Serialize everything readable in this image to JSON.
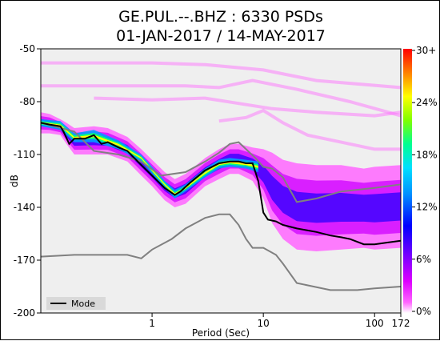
{
  "chart_data": {
    "type": "heatmap",
    "title": "GE.PUL.--.BHZ : 6330 PSDs",
    "subtitle": "01-JAN-2017 / 14-MAY-2017",
    "xlabel": "Period (Sec)",
    "ylabel": "dB",
    "x_scale": "log",
    "xlim": [
      0.1,
      172
    ],
    "ylim": [
      -200,
      -50
    ],
    "x_ticks": [
      {
        "value": 1,
        "label": "1"
      },
      {
        "value": 10,
        "label": "10"
      },
      {
        "value": 100,
        "label": "100"
      },
      {
        "value": 172,
        "label": "172"
      }
    ],
    "y_ticks": [
      {
        "value": -50,
        "label": "-50"
      },
      {
        "value": -80,
        "label": "-80"
      },
      {
        "value": -110,
        "label": "-110"
      },
      {
        "value": -140,
        "label": "-140"
      },
      {
        "value": -170,
        "label": "-170"
      },
      {
        "value": -200,
        "label": "-200"
      }
    ],
    "colorbar": {
      "ticks": [
        {
          "value": 30,
          "label": "30+"
        },
        {
          "value": 24,
          "label": "24%"
        },
        {
          "value": 18,
          "label": "18%"
        },
        {
          "value": 12,
          "label": "12%"
        },
        {
          "value": 6,
          "label": "6%"
        },
        {
          "value": 0,
          "label": "0%"
        }
      ]
    },
    "legend": {
      "label": "Mode",
      "position": "bottom-left"
    },
    "colors": {
      "plot_background": "#efefef",
      "mode_line": "#000000",
      "noise_model_line": "#808080",
      "low_probability": "#ff66ff",
      "mid_probability": "#0000ff",
      "high_probability": "#ff0000"
    },
    "mode": {
      "x": [
        0.1,
        0.12,
        0.15,
        0.16,
        0.18,
        0.2,
        0.25,
        0.3,
        0.35,
        0.4,
        0.5,
        0.6,
        0.8,
        1.0,
        1.3,
        1.6,
        1.8,
        2.2,
        3.0,
        4.0,
        5.0,
        6.0,
        7.0,
        8.0,
        9.0,
        10.0,
        11.0,
        13.0,
        15.0,
        20.0,
        30.0,
        40.0,
        50.0,
        60.0,
        80.0,
        100.0,
        130.0,
        172.0
      ],
      "y": [
        -92,
        -93,
        -94,
        -97,
        -104,
        -101,
        -101,
        -99,
        -104,
        -103,
        -106,
        -108,
        -116,
        -122,
        -129,
        -133,
        -131,
        -126,
        -119,
        -115,
        -114,
        -114,
        -115,
        -115,
        -125,
        -143,
        -147,
        -148,
        -150,
        -152,
        -154,
        -156,
        -157,
        -158,
        -161,
        -161,
        -160,
        -159
      ]
    },
    "nhnm": {
      "x": [
        0.1,
        0.2,
        0.3,
        0.5,
        0.8,
        1.2,
        2.0,
        3.0,
        4.0,
        5.0,
        6.0,
        7.0,
        8.5,
        10.0,
        12.0,
        15.0,
        20.0,
        30.0,
        50.0,
        100.0,
        172.0
      ],
      "y": [
        -92,
        -97,
        -108,
        -110,
        -114,
        -122,
        -120,
        -114,
        -109,
        -104,
        -103,
        -107,
        -112,
        -117,
        -118,
        -123,
        -137,
        -135,
        -131,
        -129,
        -127
      ]
    },
    "nlnm": {
      "x": [
        0.1,
        0.2,
        0.4,
        0.6,
        0.8,
        1.0,
        1.5,
        2.0,
        3.0,
        4.0,
        5.0,
        6.0,
        7.0,
        8.0,
        10.0,
        13.0,
        15.0,
        20.0,
        40.0,
        50.0,
        70.0,
        100.0,
        172.0
      ],
      "y": [
        -168,
        -167,
        -167,
        -167,
        -169,
        -164,
        -158,
        -152,
        -146,
        -144,
        -144,
        -150,
        -158,
        -163,
        -163,
        -167,
        -172,
        -183,
        -187,
        -187,
        -187,
        -186,
        -185
      ]
    },
    "density_band": {
      "x": [
        0.1,
        0.12,
        0.15,
        0.17,
        0.2,
        0.3,
        0.4,
        0.6,
        0.8,
        1.0,
        1.3,
        1.6,
        2.0,
        3.0,
        4.0,
        5.0,
        6.0,
        8.0,
        10.0,
        12.0,
        15.0,
        20.0,
        30.0,
        50.0,
        80.0,
        100.0,
        172.0
      ],
      "upper": [
        -86,
        -87,
        -90,
        -92,
        -95,
        -94,
        -95,
        -100,
        -107,
        -113,
        -120,
        -124,
        -121,
        -112,
        -107,
        -104,
        -104,
        -106,
        -107,
        -109,
        -113,
        -115,
        -116,
        -116,
        -118,
        -117,
        -116
      ],
      "lower": [
        -98,
        -98,
        -99,
        -104,
        -110,
        -110,
        -110,
        -114,
        -122,
        -128,
        -136,
        -140,
        -138,
        -128,
        -124,
        -121,
        -121,
        -125,
        -135,
        -149,
        -158,
        -164,
        -165,
        -164,
        -163,
        -164,
        -163
      ]
    },
    "core_band": {
      "x": [
        0.1,
        0.15,
        0.2,
        0.3,
        0.5,
        0.8,
        1.0,
        1.3,
        1.6,
        2.0,
        3.0,
        4.0,
        5.0,
        7.0,
        9.0
      ],
      "upper": [
        -90,
        -91,
        -98,
        -96,
        -102,
        -110,
        -117,
        -125,
        -130,
        -127,
        -118,
        -113,
        -112,
        -113,
        -114
      ],
      "lower": [
        -94,
        -96,
        -103,
        -103,
        -107,
        -114,
        -121,
        -129,
        -135,
        -131,
        -123,
        -118,
        -117,
        -118,
        -120
      ]
    },
    "outlier_lines": [
      {
        "x": [
          0.1,
          0.3,
          1.0,
          3.0,
          10.0,
          30.0,
          172.0
        ],
        "y": [
          -58,
          -58,
          -58,
          -59,
          -62,
          -68,
          -72
        ]
      },
      {
        "x": [
          0.1,
          0.5,
          2.0,
          4.0,
          8.0,
          20.0,
          60.0,
          172.0
        ],
        "y": [
          -71,
          -71,
          -71,
          -72,
          -68,
          -73,
          -80,
          -88
        ]
      },
      {
        "x": [
          0.3,
          1.0,
          3.0,
          6.0,
          12.0,
          30.0,
          100.0,
          172.0
        ],
        "y": [
          -78,
          -79,
          -78,
          -81,
          -84,
          -86,
          -88,
          -86
        ]
      },
      {
        "x": [
          4.0,
          7.0,
          10.0,
          15.0,
          25.0,
          50.0,
          100.0,
          172.0
        ],
        "y": [
          -91,
          -89,
          -85,
          -92,
          -99,
          -103,
          -107,
          -107
        ]
      }
    ]
  }
}
